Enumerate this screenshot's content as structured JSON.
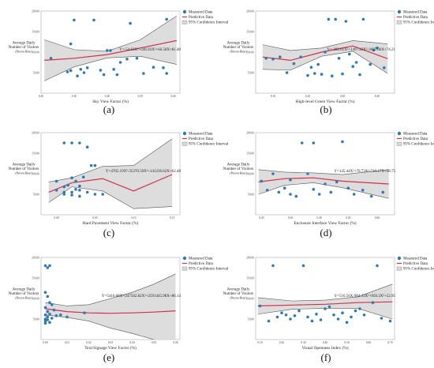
{
  "legend_labels": {
    "measured": "Measured Data",
    "predictive": "Predictive Data",
    "ci": "95% Confidence Interval"
  },
  "y_label_lines": [
    "Average Daily",
    "Number of Visitors",
    "(Person·Hour)"
  ],
  "colors": {
    "point": "#2f79b5",
    "curve": "#d2304a",
    "band": "#d7d7d7",
    "band_edge": "#555555"
  },
  "chart_data": [
    {
      "type": "scatter",
      "panel_label": "(a)",
      "xlabel": "Sky View Factor (%)",
      "equation": "Y=-54.63X³+246.92X²+66.58X+81.40",
      "xlim": [
        0.2,
        0.62
      ],
      "ylim": [
        0,
        200
      ],
      "xticks": [
        "0.20",
        "0.30",
        "0.40",
        "0.50",
        "0.60"
      ],
      "yticks": [
        "50.00",
        "100.00",
        "150.00",
        "200.00"
      ],
      "points": [
        [
          0.23,
          85
        ],
        [
          0.28,
          52
        ],
        [
          0.29,
          55
        ],
        [
          0.29,
          120
        ],
        [
          0.3,
          178
        ],
        [
          0.31,
          42
        ],
        [
          0.32,
          58
        ],
        [
          0.33,
          50
        ],
        [
          0.34,
          62
        ],
        [
          0.36,
          178
        ],
        [
          0.38,
          56
        ],
        [
          0.39,
          45
        ],
        [
          0.4,
          104
        ],
        [
          0.41,
          104
        ],
        [
          0.42,
          58
        ],
        [
          0.43,
          45
        ],
        [
          0.44,
          75
        ],
        [
          0.46,
          83
        ],
        [
          0.47,
          170
        ],
        [
          0.49,
          85
        ],
        [
          0.51,
          48
        ],
        [
          0.54,
          63
        ],
        [
          0.57,
          62
        ],
        [
          0.58,
          180
        ],
        [
          0.58,
          48
        ]
      ],
      "fit": [
        [
          0.21,
          80
        ],
        [
          0.3,
          85
        ],
        [
          0.4,
          94
        ],
        [
          0.5,
          110
        ],
        [
          0.61,
          128
        ]
      ],
      "ci_upper": [
        [
          0.21,
          130
        ],
        [
          0.3,
          106
        ],
        [
          0.4,
          102
        ],
        [
          0.5,
          130
        ],
        [
          0.61,
          188
        ]
      ],
      "ci_lower": [
        [
          0.21,
          30
        ],
        [
          0.3,
          64
        ],
        [
          0.4,
          86
        ],
        [
          0.5,
          90
        ],
        [
          0.61,
          70
        ]
      ]
    },
    {
      "type": "scatter",
      "panel_label": "(b)",
      "xlabel": "High-level Green View Factor (%)",
      "equation": "Y=-302.61X³+1497.43X²-3037.36X+74.21",
      "xlim": [
        0.05,
        0.45
      ],
      "ylim": [
        0,
        200
      ],
      "xticks": [
        "0.10",
        "0.20",
        "0.30",
        "0.40"
      ],
      "yticks": [
        "50.00",
        "100.00",
        "150.00",
        "200.00"
      ],
      "points": [
        [
          0.08,
          85
        ],
        [
          0.1,
          83
        ],
        [
          0.12,
          88
        ],
        [
          0.14,
          50
        ],
        [
          0.16,
          72
        ],
        [
          0.18,
          88
        ],
        [
          0.2,
          43
        ],
        [
          0.21,
          63
        ],
        [
          0.22,
          48
        ],
        [
          0.23,
          70
        ],
        [
          0.24,
          46
        ],
        [
          0.25,
          100
        ],
        [
          0.26,
          180
        ],
        [
          0.27,
          42
        ],
        [
          0.28,
          180
        ],
        [
          0.29,
          85
        ],
        [
          0.3,
          47
        ],
        [
          0.31,
          175
        ],
        [
          0.32,
          95
        ],
        [
          0.33,
          65
        ],
        [
          0.34,
          75
        ],
        [
          0.35,
          45
        ],
        [
          0.36,
          180
        ],
        [
          0.38,
          70
        ],
        [
          0.39,
          105
        ],
        [
          0.4,
          110
        ],
        [
          0.42,
          62
        ]
      ],
      "fit": [
        [
          0.07,
          88
        ],
        [
          0.15,
          80
        ],
        [
          0.24,
          100
        ],
        [
          0.33,
          115
        ],
        [
          0.43,
          84
        ]
      ],
      "ci_upper": [
        [
          0.07,
          118
        ],
        [
          0.15,
          104
        ],
        [
          0.24,
          110
        ],
        [
          0.33,
          128
        ],
        [
          0.43,
          120
        ]
      ],
      "ci_lower": [
        [
          0.07,
          58
        ],
        [
          0.15,
          56
        ],
        [
          0.24,
          90
        ],
        [
          0.33,
          102
        ],
        [
          0.43,
          48
        ]
      ]
    },
    {
      "type": "scatter",
      "panel_label": "(c)",
      "xlabel": "Hard Pavement View Factor (%)",
      "equation": "Y=4765.19X³-35370.59X²+141239.62X+62.40",
      "xlim": [
        -0.02,
        0.16
      ],
      "ylim": [
        0,
        200
      ],
      "xticks": [
        "0.00",
        "0.05",
        "0.10",
        "0.15"
      ],
      "yticks": [
        "50.00",
        "100.00",
        "150.00",
        "200.00"
      ],
      "points": [
        [
          0.0,
          82
        ],
        [
          0.0,
          60
        ],
        [
          0.01,
          175
        ],
        [
          0.01,
          68
        ],
        [
          0.01,
          55
        ],
        [
          0.01,
          50
        ],
        [
          0.015,
          72
        ],
        [
          0.02,
          175
        ],
        [
          0.02,
          55
        ],
        [
          0.02,
          48
        ],
        [
          0.02,
          90
        ],
        [
          0.025,
          82
        ],
        [
          0.025,
          62
        ],
        [
          0.03,
          175
        ],
        [
          0.03,
          70
        ],
        [
          0.03,
          60
        ],
        [
          0.03,
          45
        ],
        [
          0.035,
          92
        ],
        [
          0.04,
          55
        ],
        [
          0.04,
          165
        ],
        [
          0.045,
          120
        ],
        [
          0.05,
          120
        ],
        [
          0.05,
          50
        ],
        [
          0.06,
          50
        ]
      ],
      "fit": [
        [
          -0.01,
          55
        ],
        [
          0.02,
          78
        ],
        [
          0.06,
          88
        ],
        [
          0.1,
          58
        ],
        [
          0.15,
          98
        ]
      ],
      "ci_upper": [
        [
          -0.01,
          80
        ],
        [
          0.02,
          90
        ],
        [
          0.06,
          118
        ],
        [
          0.1,
          120
        ],
        [
          0.15,
          185
        ]
      ],
      "ci_lower": [
        [
          -0.01,
          30
        ],
        [
          0.02,
          68
        ],
        [
          0.06,
          58
        ],
        [
          0.1,
          15
        ],
        [
          0.15,
          20
        ]
      ]
    },
    {
      "type": "scatter",
      "panel_label": "(d)",
      "xlabel": "Enclosure Interface View Factor (%)",
      "equation": "Y=145.44X³+70.73X²-710.17X+58.75",
      "xlim": [
        0.18,
        0.66
      ],
      "ylim": [
        0,
        200
      ],
      "xticks": [
        "0.20",
        "0.30",
        "0.40",
        "0.50",
        "0.60"
      ],
      "yticks": [
        "50.00",
        "100.00",
        "150.00",
        "200.00"
      ],
      "points": [
        [
          0.2,
          82
        ],
        [
          0.22,
          60
        ],
        [
          0.24,
          100
        ],
        [
          0.26,
          55
        ],
        [
          0.28,
          65
        ],
        [
          0.3,
          85
        ],
        [
          0.3,
          50
        ],
        [
          0.32,
          45
        ],
        [
          0.34,
          175
        ],
        [
          0.36,
          100
        ],
        [
          0.38,
          175
        ],
        [
          0.38,
          62
        ],
        [
          0.4,
          50
        ],
        [
          0.42,
          75
        ],
        [
          0.44,
          55
        ],
        [
          0.46,
          80
        ],
        [
          0.48,
          178
        ],
        [
          0.5,
          65
        ],
        [
          0.52,
          50
        ],
        [
          0.55,
          60
        ],
        [
          0.58,
          45
        ],
        [
          0.62,
          55
        ]
      ],
      "fit": [
        [
          0.19,
          80
        ],
        [
          0.28,
          88
        ],
        [
          0.38,
          90
        ],
        [
          0.48,
          82
        ],
        [
          0.64,
          75
        ]
      ],
      "ci_upper": [
        [
          0.19,
          110
        ],
        [
          0.28,
          104
        ],
        [
          0.38,
          102
        ],
        [
          0.48,
          98
        ],
        [
          0.64,
          110
        ]
      ],
      "ci_lower": [
        [
          0.19,
          50
        ],
        [
          0.28,
          72
        ],
        [
          0.38,
          78
        ],
        [
          0.48,
          66
        ],
        [
          0.64,
          40
        ]
      ]
    },
    {
      "type": "scatter",
      "panel_label": "(e)",
      "xlabel": "Text/Signage View Factor (%)",
      "equation": "Y=5416.08X³-247562.82X²+2591445.98X+86.14",
      "xlim": [
        -0.002,
        0.062
      ],
      "ylim": [
        0,
        200
      ],
      "xticks": [
        "0.00",
        "0.01",
        "0.02",
        "0.03",
        "0.04",
        "0.05",
        "0.06"
      ],
      "yticks": [
        "50.00",
        "100.00",
        "150.00",
        "200.00"
      ],
      "points": [
        [
          0.0,
          180
        ],
        [
          0.0,
          115
        ],
        [
          0.0,
          78
        ],
        [
          0.0,
          60
        ],
        [
          0.0,
          50
        ],
        [
          0.0,
          45
        ],
        [
          0.0,
          40
        ],
        [
          0.001,
          175
        ],
        [
          0.001,
          105
        ],
        [
          0.001,
          68
        ],
        [
          0.001,
          55
        ],
        [
          0.001,
          48
        ],
        [
          0.002,
          180
        ],
        [
          0.002,
          90
        ],
        [
          0.002,
          62
        ],
        [
          0.002,
          42
        ],
        [
          0.003,
          85
        ],
        [
          0.003,
          52
        ],
        [
          0.004,
          72
        ],
        [
          0.005,
          58
        ],
        [
          0.007,
          60
        ],
        [
          0.01,
          55
        ],
        [
          0.018,
          65
        ]
      ],
      "fit": [
        [
          0.0,
          75
        ],
        [
          0.01,
          68
        ],
        [
          0.02,
          65
        ],
        [
          0.03,
          64
        ],
        [
          0.04,
          65
        ],
        [
          0.05,
          67
        ],
        [
          0.06,
          70
        ]
      ],
      "ci_upper": [
        [
          0.0,
          90
        ],
        [
          0.01,
          82
        ],
        [
          0.02,
          85
        ],
        [
          0.03,
          100
        ],
        [
          0.04,
          115
        ],
        [
          0.05,
          135
        ],
        [
          0.06,
          160
        ]
      ],
      "ci_lower": [
        [
          0.0,
          60
        ],
        [
          0.01,
          54
        ],
        [
          0.02,
          45
        ],
        [
          0.03,
          28
        ],
        [
          0.04,
          15
        ],
        [
          0.05,
          0
        ],
        [
          0.06,
          -20
        ]
      ]
    },
    {
      "type": "scatter",
      "panel_label": "(f)",
      "xlabel": "Visual Openness Index (%)",
      "equation": "Y=516.56X-984.33X²+950.3X³+52.95",
      "xlim": [
        0.08,
        0.72
      ],
      "ylim": [
        0,
        200
      ],
      "xticks": [
        "0.10",
        "0.20",
        "0.30",
        "0.40",
        "0.50",
        "0.60",
        "0.70"
      ],
      "yticks": [
        "50.00",
        "100.00",
        "150.00",
        "200.00"
      ],
      "points": [
        [
          0.1,
          82
        ],
        [
          0.14,
          45
        ],
        [
          0.16,
          180
        ],
        [
          0.18,
          55
        ],
        [
          0.2,
          65
        ],
        [
          0.22,
          60
        ],
        [
          0.24,
          50
        ],
        [
          0.26,
          58
        ],
        [
          0.28,
          70
        ],
        [
          0.3,
          180
        ],
        [
          0.32,
          55
        ],
        [
          0.34,
          45
        ],
        [
          0.36,
          62
        ],
        [
          0.38,
          48
        ],
        [
          0.4,
          75
        ],
        [
          0.42,
          80
        ],
        [
          0.44,
          60
        ],
        [
          0.46,
          50
        ],
        [
          0.48,
          65
        ],
        [
          0.5,
          42
        ],
        [
          0.52,
          55
        ],
        [
          0.54,
          70
        ],
        [
          0.56,
          75
        ],
        [
          0.58,
          60
        ],
        [
          0.62,
          90
        ],
        [
          0.64,
          180
        ],
        [
          0.66,
          52
        ],
        [
          0.7,
          45
        ]
      ],
      "fit": [
        [
          0.09,
          82
        ],
        [
          0.25,
          84
        ],
        [
          0.4,
          86
        ],
        [
          0.55,
          90
        ],
        [
          0.71,
          92
        ]
      ],
      "ci_upper": [
        [
          0.09,
          102
        ],
        [
          0.25,
          94
        ],
        [
          0.4,
          96
        ],
        [
          0.55,
          104
        ],
        [
          0.71,
          135
        ]
      ],
      "ci_lower": [
        [
          0.09,
          62
        ],
        [
          0.25,
          74
        ],
        [
          0.4,
          76
        ],
        [
          0.55,
          76
        ],
        [
          0.71,
          50
        ]
      ]
    }
  ]
}
